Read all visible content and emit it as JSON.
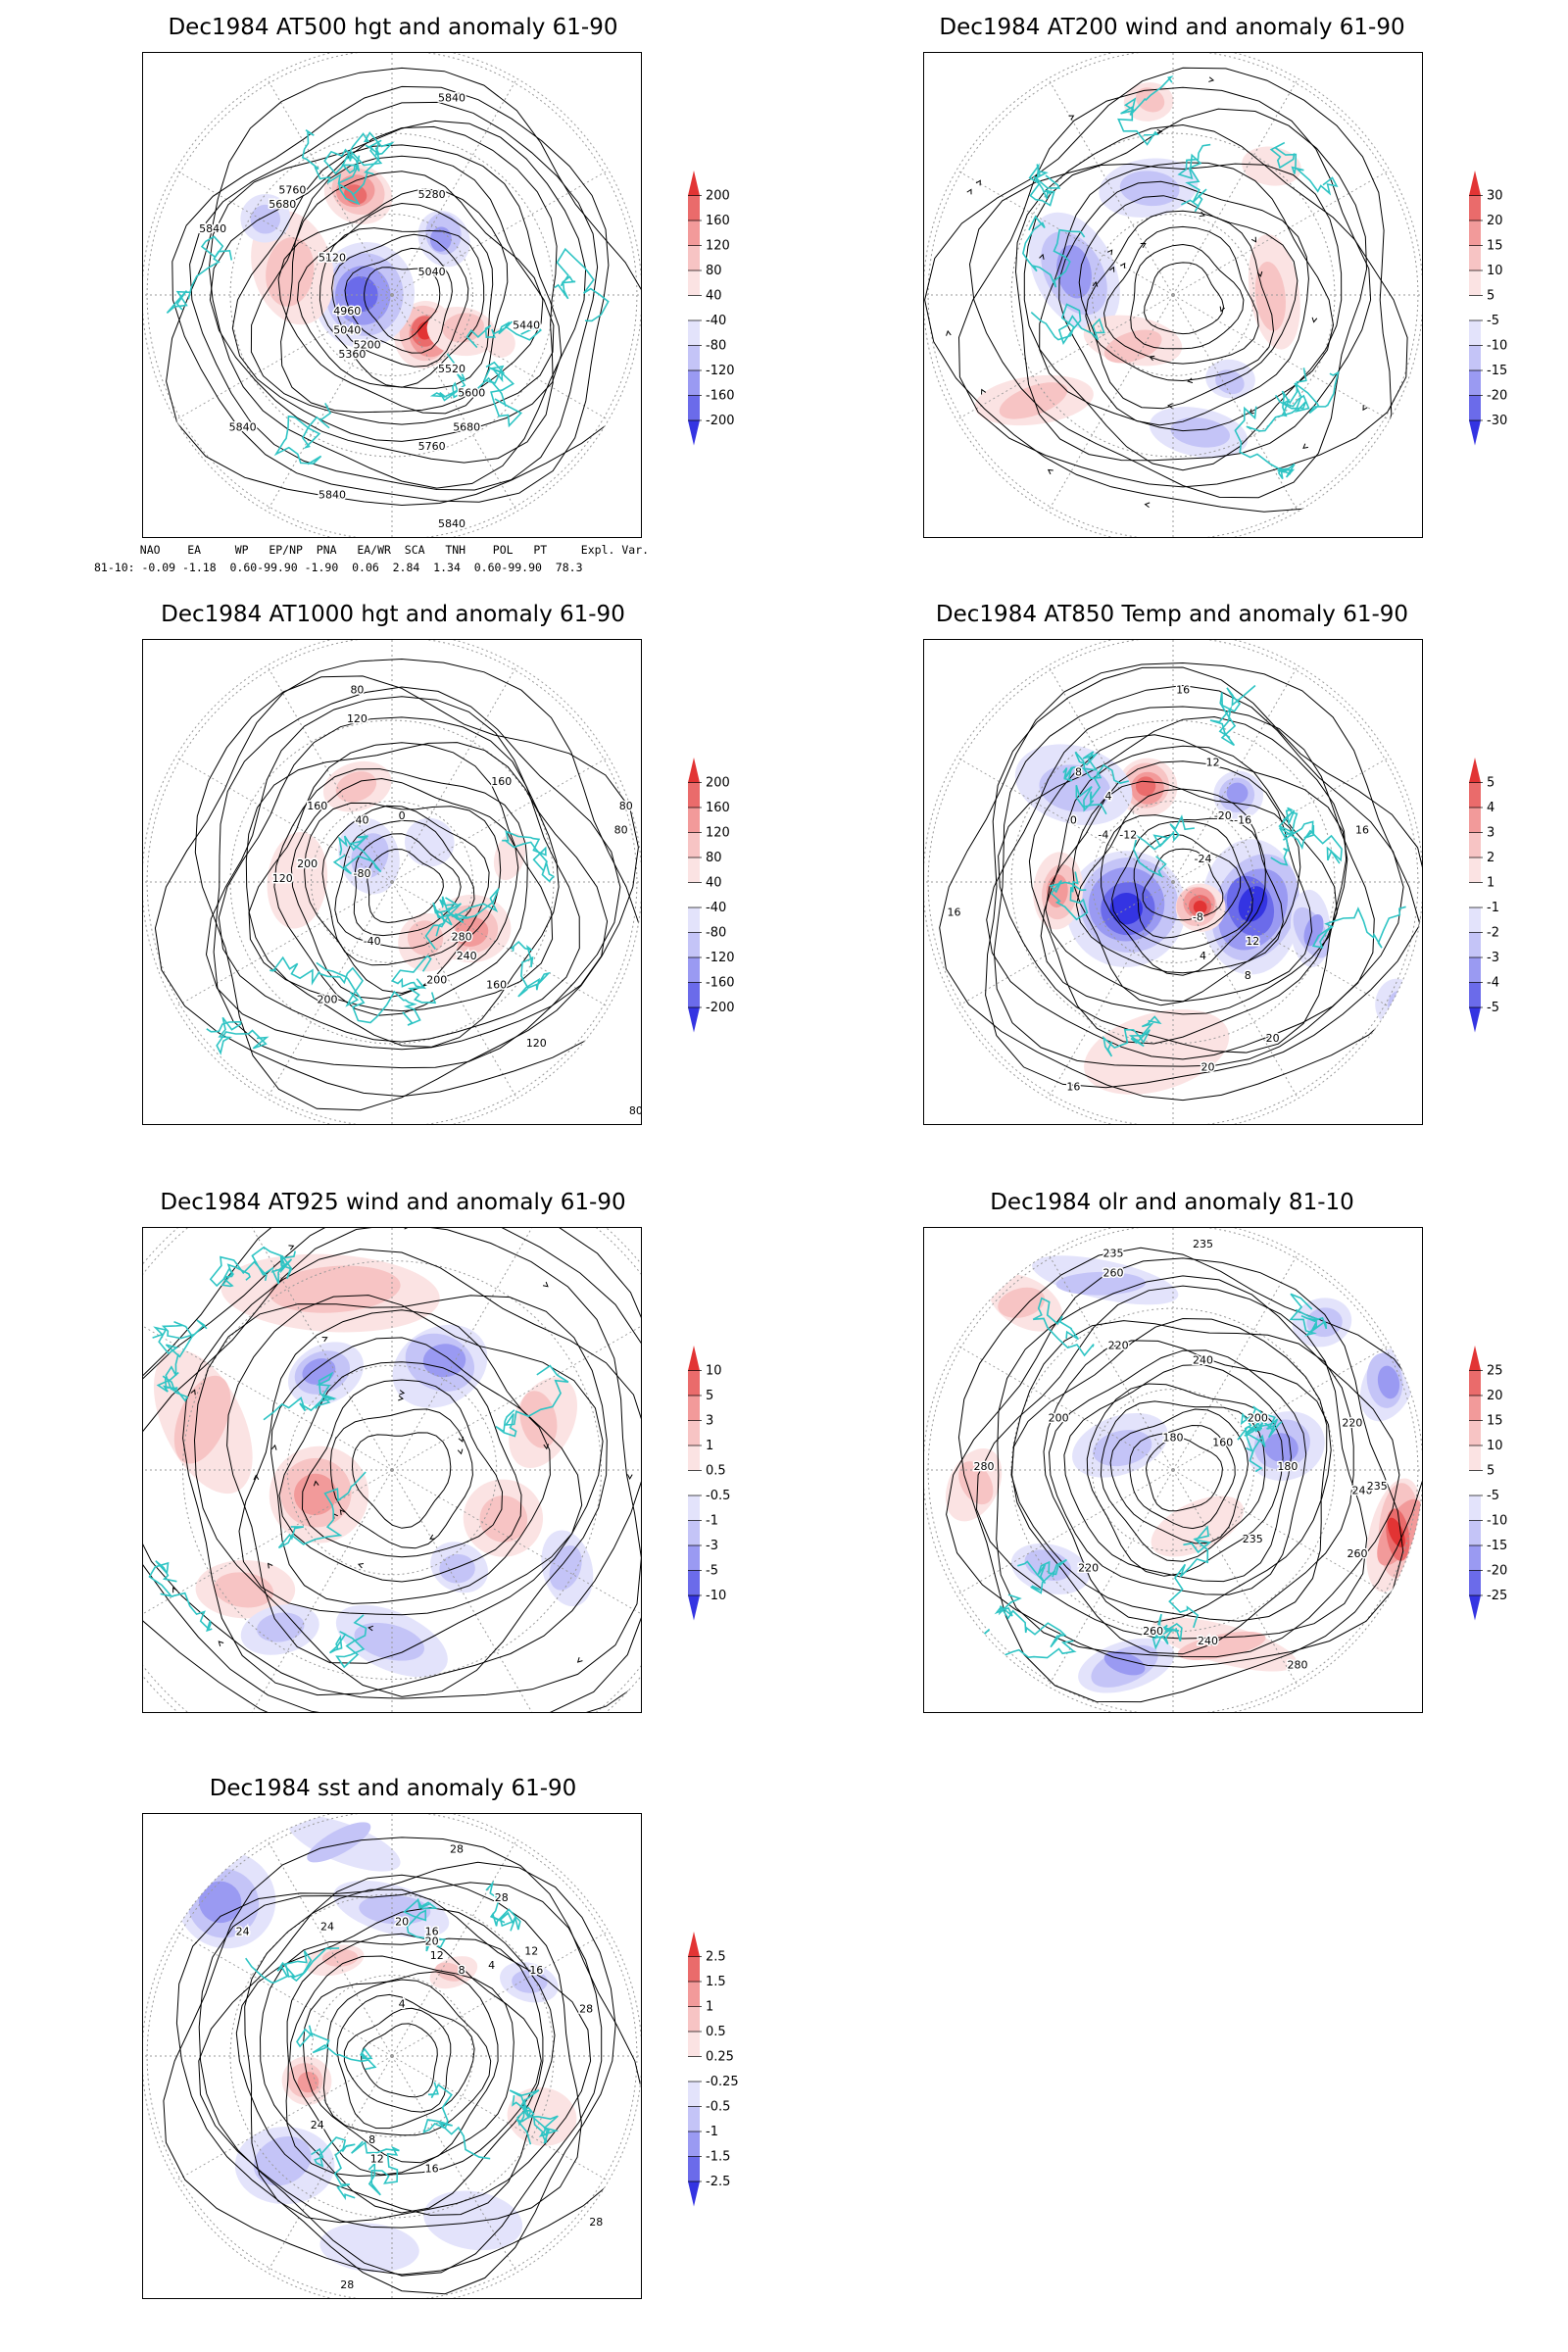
{
  "colors": {
    "coast": "#2ec4c4",
    "contour": "#000000",
    "positive_scale": [
      "#ffffff",
      "#fbe3e3",
      "#f7c4c4",
      "#f29a9a",
      "#ea6b6b",
      "#e23434"
    ],
    "negative_scale": [
      "#ffffff",
      "#e3e3fb",
      "#c4c4f7",
      "#9a9af2",
      "#6b6bea",
      "#3434e2"
    ]
  },
  "panels": [
    {
      "id": "z500",
      "title": "Dec1984 AT500 hgt and anomaly 61-90",
      "contour_labels": [
        "5840",
        "5760",
        "5680",
        "5280",
        "5120",
        "5040",
        "4960",
        "5040",
        "5360",
        "5440",
        "5520",
        "5600",
        "5680",
        "5760",
        "5840",
        "5840",
        "5840",
        "5840",
        "5200"
      ],
      "colorbar": [
        "200",
        "160",
        "120",
        "80",
        "40",
        "-40",
        "-80",
        "-120",
        "-160",
        "-200"
      ]
    },
    {
      "id": "u200",
      "title": "Dec1984 AT200 wind and anomaly 61-90",
      "contour_labels": [],
      "colorbar": [
        "30",
        "20",
        "15",
        "10",
        "5",
        "-5",
        "-10",
        "-15",
        "-20",
        "-30"
      ]
    },
    {
      "id": "z1000",
      "title": "Dec1984 AT1000 hgt and anomaly 61-90",
      "contour_labels": [
        "80",
        "120",
        "160",
        "200",
        "80",
        "80",
        "160",
        "120",
        "40",
        "0",
        "-40",
        "-80",
        "280",
        "240",
        "200",
        "160",
        "120",
        "200",
        "80"
      ],
      "colorbar": [
        "200",
        "160",
        "120",
        "80",
        "40",
        "-40",
        "-80",
        "-120",
        "-160",
        "-200"
      ]
    },
    {
      "id": "t850",
      "title": "Dec1984 AT850 Temp and anomaly 61-90",
      "contour_labels": [
        "16",
        "12",
        "8",
        "4",
        "0",
        "-4",
        "-12",
        "-20",
        "-24",
        "-16",
        "-8",
        "16",
        "16",
        "12",
        "8",
        "4",
        "16",
        "20",
        "20"
      ],
      "colorbar": [
        "5",
        "4",
        "3",
        "2",
        "1",
        "-1",
        "-2",
        "-3",
        "-4",
        "-5"
      ]
    },
    {
      "id": "u925",
      "title": "Dec1984 AT925 wind and anomaly 61-90",
      "contour_labels": [],
      "colorbar": [
        "10",
        "5",
        "3",
        "1",
        "0.5",
        "-0.5",
        "-1",
        "-3",
        "-5",
        "-10"
      ]
    },
    {
      "id": "olr",
      "title": "Dec1984 olr and anomaly 81-10",
      "contour_labels": [
        "235",
        "235",
        "260",
        "220",
        "240",
        "200",
        "180",
        "160",
        "180",
        "200",
        "220",
        "240",
        "280",
        "260",
        "235",
        "220",
        "240",
        "260",
        "280",
        "235"
      ],
      "colorbar": [
        "25",
        "20",
        "15",
        "10",
        "5",
        "-5",
        "-10",
        "-15",
        "-20",
        "-25"
      ]
    },
    {
      "id": "sst",
      "title": "Dec1984 sst and anomaly 61-90",
      "contour_labels": [
        "28",
        "24",
        "24",
        "20",
        "16",
        "12",
        "8",
        "4",
        "16",
        "12",
        "20",
        "28",
        "28",
        "28",
        "24",
        "4",
        "8",
        "12",
        "16",
        "28"
      ],
      "colorbar": [
        "2.5",
        "1.5",
        "1",
        "0.5",
        "0.25",
        "-0.25",
        "-0.5",
        "-1",
        "-1.5",
        "-2.5"
      ]
    }
  ],
  "teleconnection": {
    "header": "   NAO    EA     WP   EP/NP  PNA   EA/WR  SCA   TNH    POL   PT     Expl. Var.",
    "row": "81-10: -0.09 -1.18  0.60-99.90 -1.90  0.06  2.84  1.34  0.60-99.90  78.3"
  }
}
